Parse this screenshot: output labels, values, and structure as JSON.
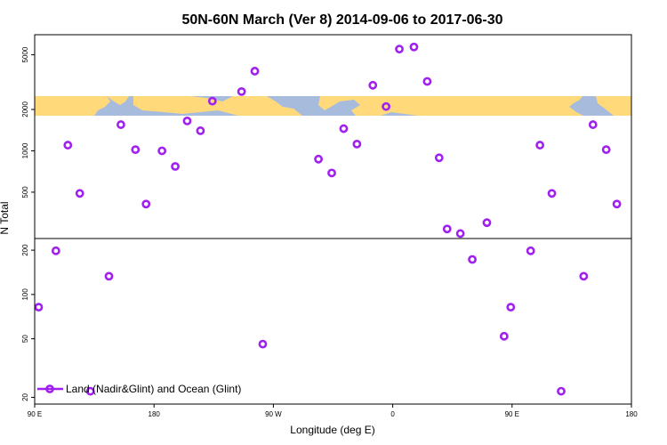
{
  "colors": {
    "marker": "#a020f0",
    "ocean": "#a7bcdd",
    "land": "#ffd97a",
    "axis": "#000000"
  },
  "chart_data": {
    "type": "scatter",
    "title": "50N-60N March (Ver 8)   2014-09-06 to 2017-06-30",
    "xlabel": "Longitude (deg E)",
    "ylabel": "N Total",
    "x_ticks": [
      {
        "value": 90,
        "label": "90 E"
      },
      {
        "value": 180,
        "label": "180"
      },
      {
        "value": 270,
        "label": "90 W"
      },
      {
        "value": 360,
        "label": "0"
      },
      {
        "value": 450,
        "label": "90 E"
      },
      {
        "value": 540,
        "label": "180"
      }
    ],
    "xlim": [
      90,
      540
    ],
    "legend": {
      "label": "Land (Nadir&Glint) and Ocean (Glint)",
      "position": "bottom-left"
    },
    "upper_panel": {
      "yscale": "log",
      "ylim": [
        230,
        7000
      ],
      "y_ticks": [
        500,
        1000,
        2000,
        5000
      ],
      "map_band": "world map strip (50N-60N)",
      "points": [
        {
          "x": 115,
          "y": 1100
        },
        {
          "x": 124,
          "y": 490
        },
        {
          "x": 155,
          "y": 1550
        },
        {
          "x": 166,
          "y": 1020
        },
        {
          "x": 174,
          "y": 410
        },
        {
          "x": 186,
          "y": 1000
        },
        {
          "x": 196,
          "y": 770
        },
        {
          "x": 205,
          "y": 1650
        },
        {
          "x": 215,
          "y": 1400
        },
        {
          "x": 224,
          "y": 2300
        },
        {
          "x": 246,
          "y": 2700
        },
        {
          "x": 256,
          "y": 3800
        },
        {
          "x": 304,
          "y": 870
        },
        {
          "x": 314,
          "y": 690
        },
        {
          "x": 323,
          "y": 1450
        },
        {
          "x": 333,
          "y": 1120
        },
        {
          "x": 345,
          "y": 3000
        },
        {
          "x": 355,
          "y": 2100
        },
        {
          "x": 365,
          "y": 5500
        },
        {
          "x": 376,
          "y": 5700
        },
        {
          "x": 386,
          "y": 3200
        },
        {
          "x": 395,
          "y": 890
        },
        {
          "x": 401,
          "y": 270
        },
        {
          "x": 411,
          "y": 250
        },
        {
          "x": 431,
          "y": 300
        },
        {
          "x": 471,
          "y": 1100
        },
        {
          "x": 480,
          "y": 490
        },
        {
          "x": 511,
          "y": 1550
        },
        {
          "x": 521,
          "y": 1020
        },
        {
          "x": 529,
          "y": 410
        }
      ]
    },
    "lower_panel": {
      "yscale": "log",
      "ylim": [
        18,
        240
      ],
      "y_ticks": [
        20,
        50,
        100,
        200
      ],
      "points": [
        {
          "x": 93,
          "y": 82
        },
        {
          "x": 106,
          "y": 198
        },
        {
          "x": 132,
          "y": 22
        },
        {
          "x": 146,
          "y": 133
        },
        {
          "x": 262,
          "y": 46
        },
        {
          "x": 420,
          "y": 173
        },
        {
          "x": 444,
          "y": 52
        },
        {
          "x": 449,
          "y": 82
        },
        {
          "x": 464,
          "y": 198
        },
        {
          "x": 487,
          "y": 22
        },
        {
          "x": 504,
          "y": 133
        }
      ]
    }
  }
}
